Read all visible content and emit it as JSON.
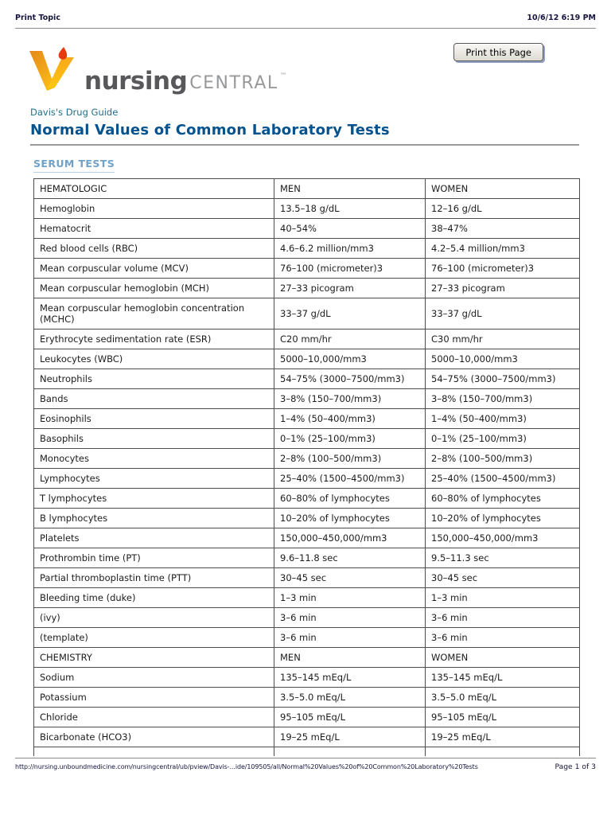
{
  "meta": {
    "header_left": "Print Topic",
    "header_right": "10/6/12 6:19 PM",
    "footer_url": "http://nursing.unboundmedicine.com/nursingcentral/ub/pview/Davis-...ide/109505/all/Normal%20Values%20of%20Common%20Laboratory%20Tests",
    "footer_page": "Page 1 of 3"
  },
  "toolbar": {
    "print_button_label": "Print this Page"
  },
  "logo": {
    "word1": "nursing",
    "word2": "CENTRAL",
    "trademark": "™",
    "icon": "nursing-central-v-flame-mark",
    "colors": {
      "orange": "#ef9c1f",
      "yellow": "#fdb813",
      "flame": "#e8380d",
      "word1": "#58585a",
      "word2": "#98999b"
    }
  },
  "content": {
    "source_link": "Davis's Drug Guide",
    "title": "Normal Values of Common Laboratory Tests",
    "section_heading": "SERUM TESTS",
    "colors": {
      "title": "#04528e",
      "link": "#20718c",
      "section": "#70a1c9"
    }
  },
  "table": {
    "headers": [
      "HEMATOLOGIC",
      "MEN",
      "WOMEN"
    ],
    "rows": [
      [
        "Hemoglobin",
        "13.5–18 g/dL",
        "12–16 g/dL"
      ],
      [
        "Hematocrit",
        "40–54%",
        "38–47%"
      ],
      [
        "Red blood cells (RBC)",
        "4.6–6.2 million/mm3",
        "4.2–5.4 million/mm3"
      ],
      [
        "Mean corpuscular volume (MCV)",
        "76–100 (micrometer)3",
        "76–100 (micrometer)3"
      ],
      [
        "Mean corpuscular hemoglobin (MCH)",
        "27–33 picogram",
        "27–33 picogram"
      ],
      [
        "Mean corpuscular hemoglobin concentration (MCHC)",
        "33–37 g/dL",
        "33–37 g/dL"
      ],
      [
        "Erythrocyte sedimentation rate (ESR)",
        "C20 mm/hr",
        "C30 mm/hr"
      ],
      [
        "Leukocytes (WBC)",
        "5000–10,000/mm3",
        "5000–10,000/mm3"
      ],
      [
        "Neutrophils",
        "54–75% (3000–7500/mm3)",
        "54–75% (3000–7500/mm3)"
      ],
      [
        "Bands",
        "3–8% (150–700/mm3)",
        "3–8% (150–700/mm3)"
      ],
      [
        "Eosinophils",
        "1–4% (50–400/mm3)",
        "1–4% (50–400/mm3)"
      ],
      [
        "Basophils",
        "0–1% (25–100/mm3)",
        "0–1% (25–100/mm3)"
      ],
      [
        "Monocytes",
        "2–8% (100–500/mm3)",
        "2–8% (100–500/mm3)"
      ],
      [
        "Lymphocytes",
        "25–40% (1500–4500/mm3)",
        "25–40% (1500–4500/mm3)"
      ],
      [
        "T lymphocytes",
        "60–80% of lymphocytes",
        "60–80% of lymphocytes"
      ],
      [
        "B lymphocytes",
        "10–20% of lymphocytes",
        "10–20% of lymphocytes"
      ],
      [
        "Platelets",
        "150,000–450,000/mm3",
        "150,000–450,000/mm3"
      ],
      [
        "Prothrombin time (PT)",
        "9.6–11.8 sec",
        "9.5–11.3 sec"
      ],
      [
        "Partial thromboplastin time (PTT)",
        "30–45 sec",
        "30–45 sec"
      ],
      [
        "Bleeding time (duke)",
        "1–3 min",
        "1–3 min"
      ],
      [
        "(ivy)",
        "3–6 min",
        "3–6 min"
      ],
      [
        "(template)",
        "3–6 min",
        "3–6 min"
      ],
      [
        "CHEMISTRY",
        "MEN",
        "WOMEN"
      ],
      [
        "Sodium",
        "135–145 mEq/L",
        "135–145 mEq/L"
      ],
      [
        "Potassium",
        "3.5–5.0 mEq/L",
        "3.5–5.0 mEq/L"
      ],
      [
        "Chloride",
        "95–105 mEq/L",
        "95–105 mEq/L"
      ],
      [
        "Bicarbonate (HCO3)",
        "19–25 mEq/L",
        "19–25 mEq/L"
      ],
      [
        "",
        "",
        ""
      ]
    ]
  }
}
